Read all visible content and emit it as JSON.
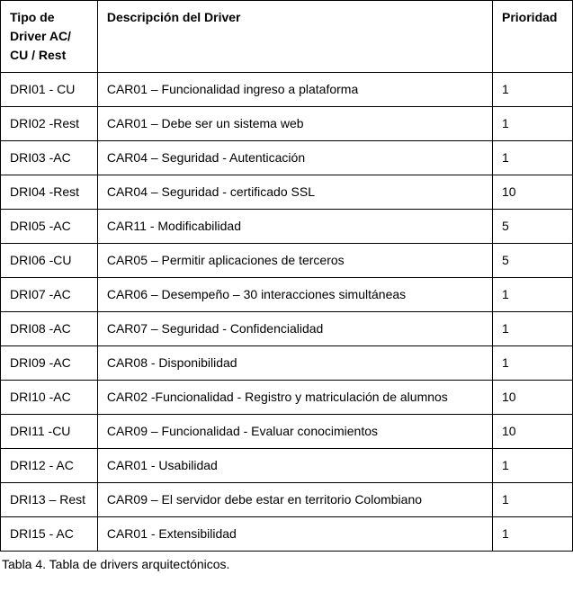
{
  "table": {
    "headers": {
      "tipo": "Tipo de Driver AC/ CU / Rest",
      "descripcion": "Descripción del Driver",
      "prioridad": "Prioridad"
    },
    "rows": [
      {
        "tipo": "DRI01 - CU",
        "descripcion": "CAR01 – Funcionalidad ingreso a plataforma",
        "prioridad": "1"
      },
      {
        "tipo": "DRI02 -Rest",
        "descripcion": "CAR01 – Debe ser un sistema web",
        "prioridad": "1"
      },
      {
        "tipo": "DRI03 -AC",
        "descripcion": "CAR04 – Seguridad - Autenticación",
        "prioridad": "1"
      },
      {
        "tipo": "DRI04 -Rest",
        "descripcion": "CAR04 – Seguridad - certificado SSL",
        "prioridad": "10"
      },
      {
        "tipo": "DRI05 -AC",
        "descripcion": "CAR11 - Modificabilidad",
        "prioridad": "5"
      },
      {
        "tipo": "DRI06 -CU",
        "descripcion": "CAR05 – Permitir aplicaciones de terceros",
        "prioridad": "5"
      },
      {
        "tipo": "DRI07 -AC",
        "descripcion": "CAR06 – Desempeño – 30 interacciones simultáneas",
        "prioridad": "1"
      },
      {
        "tipo": "DRI08 -AC",
        "descripcion": "CAR07 – Seguridad - Confidencialidad",
        "prioridad": "1"
      },
      {
        "tipo": "DRI09 -AC",
        "descripcion": "CAR08 - Disponibilidad",
        "prioridad": "1"
      },
      {
        "tipo": "DRI10 -AC",
        "descripcion": "CAR02 -Funcionalidad - Registro y matriculación de alumnos",
        "prioridad": "10"
      },
      {
        "tipo": "DRI11 -CU",
        "descripcion": "CAR09 – Funcionalidad - Evaluar conocimientos",
        "prioridad": "10"
      },
      {
        "tipo": "DRI12 - AC",
        "descripcion": "CAR01 - Usabilidad",
        "prioridad": "1"
      },
      {
        "tipo": "DRI13 – Rest",
        "descripcion": "CAR09 – El servidor debe estar en territorio Colombiano",
        "prioridad": "1"
      },
      {
        "tipo": "DRI15 - AC",
        "descripcion": "CAR01 - Extensibilidad",
        "prioridad": "1"
      }
    ]
  },
  "caption": "Tabla 4. Tabla de drivers arquitectónicos."
}
